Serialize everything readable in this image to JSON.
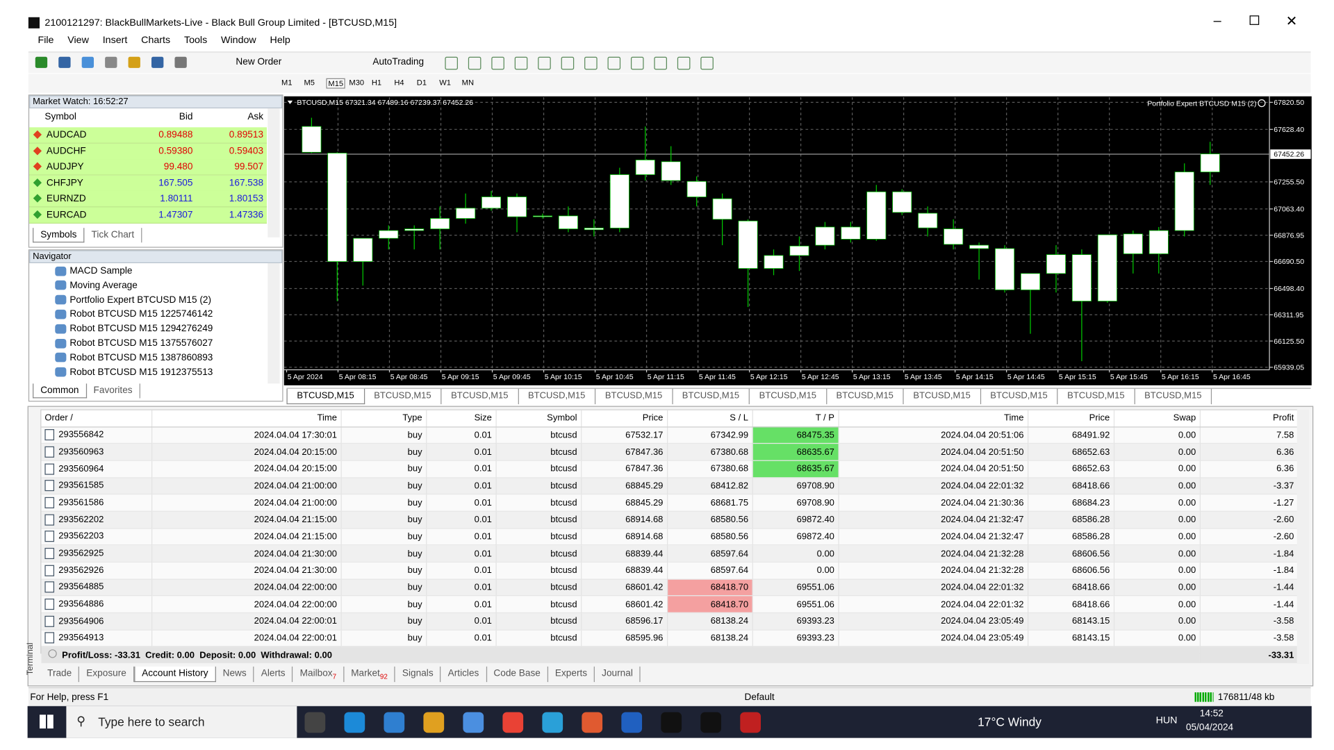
{
  "window": {
    "title": "2100121297: BlackBullMarkets-Live - Black Bull Group Limited - [BTCUSD,M15]",
    "menu": [
      "File",
      "View",
      "Insert",
      "Charts",
      "Tools",
      "Window",
      "Help"
    ]
  },
  "toolbar": {
    "buttons": [
      "New Order",
      "AutoTrading"
    ],
    "timeframes": [
      "M1",
      "M5",
      "M15",
      "M30",
      "H1",
      "H4",
      "D1",
      "W1",
      "MN"
    ]
  },
  "market_watch": {
    "title": "Market Watch: 16:52:27",
    "headers": [
      "Symbol",
      "Bid",
      "Ask"
    ],
    "rows": [
      {
        "symbol": "AUDCAD",
        "bid": "0.89488",
        "ask": "0.89513",
        "color": "#e00000"
      },
      {
        "symbol": "AUDCHF",
        "bid": "0.59380",
        "ask": "0.59403",
        "color": "#e00000"
      },
      {
        "symbol": "AUDJPY",
        "bid": "99.480",
        "ask": "99.507",
        "color": "#e00000"
      },
      {
        "symbol": "CHFJPY",
        "bid": "167.505",
        "ask": "167.538",
        "color": "#1a1add"
      },
      {
        "symbol": "EURNZD",
        "bid": "1.80111",
        "ask": "1.80153",
        "color": "#1a1add"
      },
      {
        "symbol": "EURCAD",
        "bid": "1.47307",
        "ask": "1.47336",
        "color": "#1a1add"
      }
    ],
    "tabs": [
      "Symbols",
      "Tick Chart"
    ]
  },
  "navigator": {
    "title": "Navigator",
    "items": [
      "MACD Sample",
      "Moving Average",
      "Portfolio Expert BTCUSD M15 (2)",
      "Robot BTCUSD M15 1225746142",
      "Robot BTCUSD M15 1294276249",
      "Robot BTCUSD M15 1375576027",
      "Robot BTCUSD M15 1387860893",
      "Robot BTCUSD M15 1912375513"
    ],
    "tabs": [
      "Common",
      "Favorites"
    ]
  },
  "chart": {
    "type": "candlestick",
    "header": "BTCUSD,M15  67321.34 67489.16 67239.37 67452.26",
    "expert": "Portfolio Expert BTCUSD M15 (2)",
    "ylim": [
      65921,
      67857
    ],
    "yticks": [
      {
        "value": 67820.5,
        "label": "67820.50"
      },
      {
        "value": 67628.4,
        "label": "67628.40"
      },
      {
        "value": 67255.5,
        "label": "67255.50"
      },
      {
        "value": 67063.4,
        "label": "67063.40"
      },
      {
        "value": 66876.95,
        "label": "66876.95"
      },
      {
        "value": 66690.5,
        "label": "66690.50"
      },
      {
        "value": 66498.4,
        "label": "66498.40"
      },
      {
        "value": 66311.95,
        "label": "66311.95"
      },
      {
        "value": 66125.5,
        "label": "66125.50"
      },
      {
        "value": 65939.05,
        "label": "65939.05"
      }
    ],
    "last_price": {
      "value": 67452.26,
      "label": "67452.26"
    },
    "xlabels": [
      "5 Apr 2024",
      "5 Apr 08:15",
      "5 Apr 08:45",
      "5 Apr 09:15",
      "5 Apr 09:45",
      "5 Apr 10:15",
      "5 Apr 10:45",
      "5 Apr 11:15",
      "5 Apr 11:45",
      "5 Apr 12:15",
      "5 Apr 12:45",
      "5 Apr 13:15",
      "5 Apr 13:45",
      "5 Apr 14:15",
      "5 Apr 14:45",
      "5 Apr 15:15",
      "5 Apr 15:45",
      "5 Apr 16:15",
      "5 Apr 16:45"
    ],
    "grid": true,
    "candle_color": "#ffffff",
    "wick_color": "#00c800",
    "candles": [
      {
        "open": 67649,
        "high": 67711,
        "low": 67460,
        "close": 67466
      },
      {
        "open": 67460,
        "high": 67466,
        "low": 66409,
        "close": 66690
      },
      {
        "open": 66690,
        "high": 66855,
        "low": 66519,
        "close": 66855
      },
      {
        "open": 66855,
        "high": 66947,
        "low": 66776,
        "close": 66910
      },
      {
        "open": 66910,
        "high": 66947,
        "low": 66776,
        "close": 66922
      },
      {
        "open": 66922,
        "high": 67081,
        "low": 66776,
        "close": 66996
      },
      {
        "open": 66996,
        "high": 67173,
        "low": 66959,
        "close": 67069
      },
      {
        "open": 67069,
        "high": 67191,
        "low": 67051,
        "close": 67149
      },
      {
        "open": 67149,
        "high": 67173,
        "low": 66898,
        "close": 67008
      },
      {
        "open": 67014,
        "high": 67030,
        "low": 66995,
        "close": 67008
      },
      {
        "open": 67014,
        "high": 67081,
        "low": 66898,
        "close": 66922
      },
      {
        "open": 66916,
        "high": 66990,
        "low": 66868,
        "close": 66928
      },
      {
        "open": 66928,
        "high": 67356,
        "low": 66898,
        "close": 67307
      },
      {
        "open": 67307,
        "high": 67649,
        "low": 67265,
        "close": 67411
      },
      {
        "open": 67399,
        "high": 67509,
        "low": 67234,
        "close": 67265
      },
      {
        "open": 67259,
        "high": 67295,
        "low": 67081,
        "close": 67149
      },
      {
        "open": 67136,
        "high": 67173,
        "low": 66806,
        "close": 66990
      },
      {
        "open": 66978,
        "high": 66990,
        "low": 66367,
        "close": 66641
      },
      {
        "open": 66641,
        "high": 66776,
        "low": 66593,
        "close": 66733
      },
      {
        "open": 66733,
        "high": 66868,
        "low": 66623,
        "close": 66800
      },
      {
        "open": 66806,
        "high": 66971,
        "low": 66776,
        "close": 66935
      },
      {
        "open": 66935,
        "high": 66971,
        "low": 66825,
        "close": 66849
      },
      {
        "open": 66849,
        "high": 67234,
        "low": 66837,
        "close": 67185
      },
      {
        "open": 67185,
        "high": 67204,
        "low": 67020,
        "close": 67039
      },
      {
        "open": 67033,
        "high": 67081,
        "low": 66868,
        "close": 66929
      },
      {
        "open": 66922,
        "high": 66990,
        "low": 66776,
        "close": 66812
      },
      {
        "open": 66806,
        "high": 66825,
        "low": 66562,
        "close": 66782
      },
      {
        "open": 66782,
        "high": 66806,
        "low": 66470,
        "close": 66489
      },
      {
        "open": 66489,
        "high": 66605,
        "low": 66177,
        "close": 66605
      },
      {
        "open": 66605,
        "high": 66806,
        "low": 66470,
        "close": 66739
      },
      {
        "open": 66739,
        "high": 66776,
        "low": 65982,
        "close": 66409
      },
      {
        "open": 66409,
        "high": 66880,
        "low": 66397,
        "close": 66880
      },
      {
        "open": 66745,
        "high": 66910,
        "low": 66605,
        "close": 66886
      },
      {
        "open": 66745,
        "high": 66935,
        "low": 66605,
        "close": 66910
      },
      {
        "open": 66910,
        "high": 67387,
        "low": 66868,
        "close": 67326
      },
      {
        "open": 67326,
        "high": 67540,
        "low": 67234,
        "close": 67454
      }
    ]
  },
  "chart_tabs": [
    "BTCUSD,M15",
    "BTCUSD,M15",
    "BTCUSD,M15",
    "BTCUSD,M15",
    "BTCUSD,M15",
    "BTCUSD,M15",
    "BTCUSD,M15",
    "BTCUSD,M15",
    "BTCUSD,M15",
    "BTCUSD,M15",
    "BTCUSD,M15",
    "BTCUSD,M15"
  ],
  "terminal": {
    "label": "Terminal",
    "headers": [
      "Order /",
      "Time",
      "Type",
      "Size",
      "Symbol",
      "Price",
      "S / L",
      "T / P",
      "Time",
      "Price",
      "Swap",
      "Profit"
    ],
    "rows": [
      {
        "cells": [
          "293556842",
          "2024.04.04 17:30:01",
          "buy",
          "0.01",
          "btcusd",
          "67532.17",
          "67342.99",
          "68475.35",
          "2024.04.04 20:51:06",
          "68491.92",
          "0.00",
          "7.58"
        ],
        "tp_hit": true
      },
      {
        "cells": [
          "293560963",
          "2024.04.04 20:15:00",
          "buy",
          "0.01",
          "btcusd",
          "67847.36",
          "67380.68",
          "68635.67",
          "2024.04.04 20:51:50",
          "68652.63",
          "0.00",
          "6.36"
        ],
        "tp_hit": true
      },
      {
        "cells": [
          "293560964",
          "2024.04.04 20:15:00",
          "buy",
          "0.01",
          "btcusd",
          "67847.36",
          "67380.68",
          "68635.67",
          "2024.04.04 20:51:50",
          "68652.63",
          "0.00",
          "6.36"
        ],
        "tp_hit": true
      },
      {
        "cells": [
          "293561585",
          "2024.04.04 21:00:00",
          "buy",
          "0.01",
          "btcusd",
          "68845.29",
          "68412.82",
          "69708.90",
          "2024.04.04 22:01:32",
          "68418.66",
          "0.00",
          "-3.37"
        ]
      },
      {
        "cells": [
          "293561586",
          "2024.04.04 21:00:00",
          "buy",
          "0.01",
          "btcusd",
          "68845.29",
          "68681.75",
          "69708.90",
          "2024.04.04 21:30:36",
          "68684.23",
          "0.00",
          "-1.27"
        ]
      },
      {
        "cells": [
          "293562202",
          "2024.04.04 21:15:00",
          "buy",
          "0.01",
          "btcusd",
          "68914.68",
          "68580.56",
          "69872.40",
          "2024.04.04 21:32:47",
          "68586.28",
          "0.00",
          "-2.60"
        ]
      },
      {
        "cells": [
          "293562203",
          "2024.04.04 21:15:00",
          "buy",
          "0.01",
          "btcusd",
          "68914.68",
          "68580.56",
          "69872.40",
          "2024.04.04 21:32:47",
          "68586.28",
          "0.00",
          "-2.60"
        ]
      },
      {
        "cells": [
          "293562925",
          "2024.04.04 21:30:00",
          "buy",
          "0.01",
          "btcusd",
          "68839.44",
          "68597.64",
          "0.00",
          "2024.04.04 21:32:28",
          "68606.56",
          "0.00",
          "-1.84"
        ]
      },
      {
        "cells": [
          "293562926",
          "2024.04.04 21:30:00",
          "buy",
          "0.01",
          "btcusd",
          "68839.44",
          "68597.64",
          "0.00",
          "2024.04.04 21:32:28",
          "68606.56",
          "0.00",
          "-1.84"
        ]
      },
      {
        "cells": [
          "293564885",
          "2024.04.04 22:00:00",
          "buy",
          "0.01",
          "btcusd",
          "68601.42",
          "68418.70",
          "69551.06",
          "2024.04.04 22:01:32",
          "68418.66",
          "0.00",
          "-1.44"
        ],
        "sl_hit": true
      },
      {
        "cells": [
          "293564886",
          "2024.04.04 22:00:00",
          "buy",
          "0.01",
          "btcusd",
          "68601.42",
          "68418.70",
          "69551.06",
          "2024.04.04 22:01:32",
          "68418.66",
          "0.00",
          "-1.44"
        ],
        "sl_hit": true
      },
      {
        "cells": [
          "293564906",
          "2024.04.04 22:00:01",
          "buy",
          "0.01",
          "btcusd",
          "68596.17",
          "68138.24",
          "69393.23",
          "2024.04.04 23:05:49",
          "68143.15",
          "0.00",
          "-3.58"
        ]
      },
      {
        "cells": [
          "293564913",
          "2024.04.04 22:00:01",
          "buy",
          "0.01",
          "btcusd",
          "68595.96",
          "68138.24",
          "69393.23",
          "2024.04.04 23:05:49",
          "68143.15",
          "0.00",
          "-3.58"
        ]
      }
    ],
    "summary": "Profit/Loss: -33.31  Credit: 0.00  Deposit: 0.00  Withdrawal: 0.00",
    "summary_total": "-33.31",
    "tabs": [
      {
        "label": "Trade"
      },
      {
        "label": "Exposure"
      },
      {
        "label": "Account History",
        "active": true
      },
      {
        "label": "News"
      },
      {
        "label": "Alerts"
      },
      {
        "label": "Mailbox",
        "badge": "7"
      },
      {
        "label": "Market",
        "badge": "92"
      },
      {
        "label": "Signals"
      },
      {
        "label": "Articles"
      },
      {
        "label": "Code Base"
      },
      {
        "label": "Experts"
      },
      {
        "label": "Journal"
      }
    ]
  },
  "status": {
    "help": "For Help, press F1",
    "profile": "Default",
    "traffic": "176811/48 kb"
  },
  "taskbar": {
    "search": "Type here to search",
    "weather": "17°C Windy",
    "lang": "HUN",
    "time": "14:52",
    "date": "05/04/2024"
  }
}
